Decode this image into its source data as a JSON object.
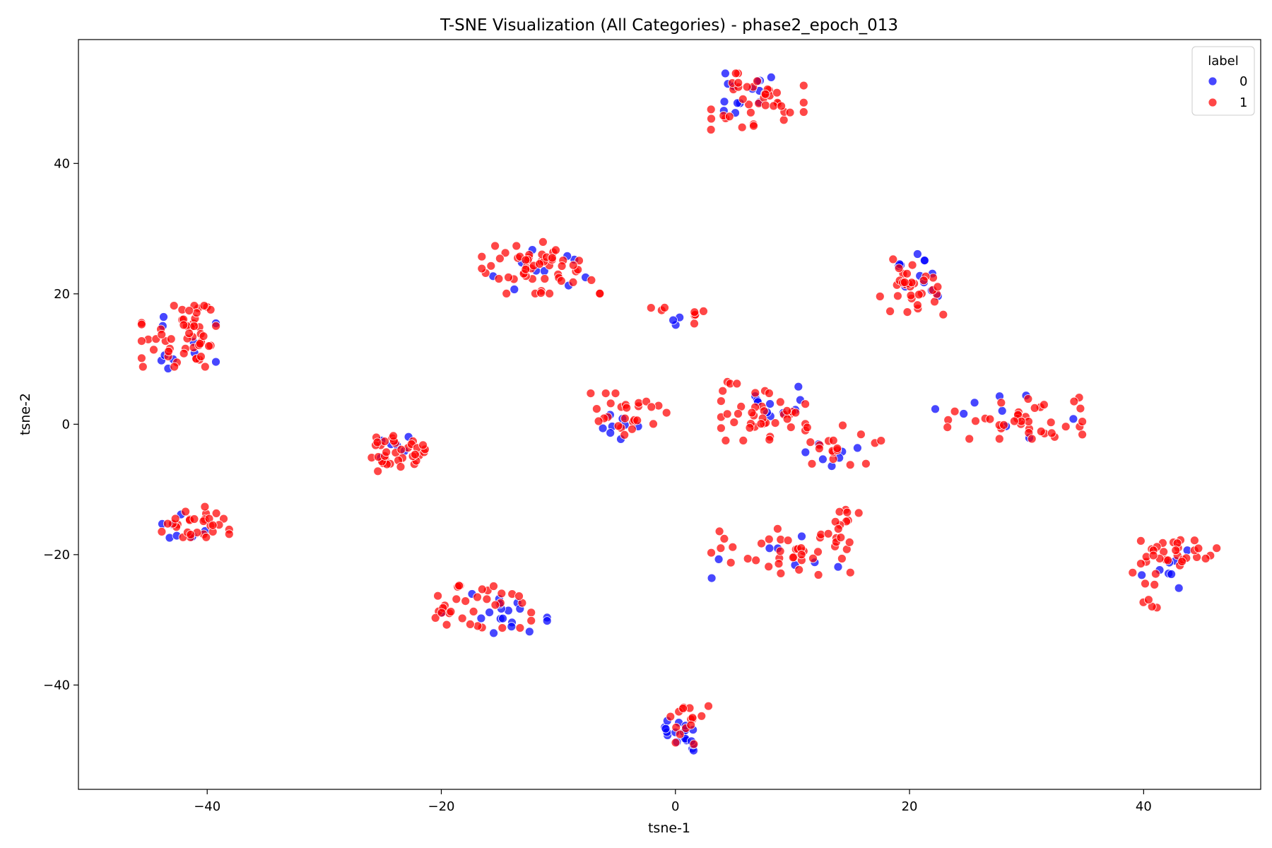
{
  "chart_data": {
    "type": "scatter",
    "title": "T-SNE Visualization (All Categories) - phase2_epoch_013",
    "xlabel": "tsne-1",
    "ylabel": "tsne-2",
    "xlim": [
      -51,
      50
    ],
    "ylim": [
      -56,
      59
    ],
    "xticks": [
      -40,
      -20,
      0,
      20,
      40
    ],
    "yticks": [
      -40,
      -20,
      0,
      20,
      40
    ],
    "grid": false,
    "legend": {
      "title": "label",
      "position": "top-right"
    },
    "series": [
      {
        "name": "0",
        "color": "#0000ff",
        "clusters": [
          {
            "cx": 6.0,
            "cy": 51.0,
            "sx": 1.6,
            "sy": 1.8,
            "n": 14,
            "seed": 11
          },
          {
            "cx": -12.0,
            "cy": 23.5,
            "sx": 2.4,
            "sy": 1.8,
            "n": 10,
            "seed": 12
          },
          {
            "cx": -42.5,
            "cy": 12.5,
            "sx": 1.8,
            "sy": 2.2,
            "n": 10,
            "seed": 13
          },
          {
            "cx": 21.0,
            "cy": 22.5,
            "sx": 1.2,
            "sy": 2.0,
            "n": 12,
            "seed": 14
          },
          {
            "cx": 1.0,
            "cy": 16.5,
            "sx": 0.7,
            "sy": 1.0,
            "n": 3,
            "seed": 15
          },
          {
            "cx": 8.5,
            "cy": 3.0,
            "sx": 1.2,
            "sy": 2.2,
            "n": 10,
            "seed": 16
          },
          {
            "cx": -4.8,
            "cy": 0.0,
            "sx": 0.9,
            "sy": 1.5,
            "n": 8,
            "seed": 17
          },
          {
            "cx": -23.0,
            "cy": -3.5,
            "sx": 1.2,
            "sy": 1.2,
            "n": 6,
            "seed": 18
          },
          {
            "cx": 28.5,
            "cy": 1.5,
            "sx": 3.5,
            "sy": 2.0,
            "n": 9,
            "seed": 19
          },
          {
            "cx": 13.5,
            "cy": -5.0,
            "sx": 1.6,
            "sy": 1.6,
            "n": 7,
            "seed": 20
          },
          {
            "cx": -41.5,
            "cy": -16.0,
            "sx": 1.4,
            "sy": 1.2,
            "n": 8,
            "seed": 21
          },
          {
            "cx": 8.5,
            "cy": -20.0,
            "sx": 3.0,
            "sy": 2.0,
            "n": 8,
            "seed": 22
          },
          {
            "cx": -16.0,
            "cy": -29.0,
            "sx": 2.8,
            "sy": 2.0,
            "n": 18,
            "seed": 23
          },
          {
            "cx": 42.0,
            "cy": -22.0,
            "sx": 1.2,
            "sy": 2.0,
            "n": 8,
            "seed": 24
          },
          {
            "cx": 0.3,
            "cy": -48.0,
            "sx": 0.9,
            "sy": 1.4,
            "n": 20,
            "seed": 25
          }
        ]
      },
      {
        "name": "1",
        "color": "#ff0000",
        "clusters": [
          {
            "cx": 7.0,
            "cy": 49.5,
            "sx": 2.2,
            "sy": 2.4,
            "n": 40,
            "seed": 31
          },
          {
            "cx": -11.5,
            "cy": 24.0,
            "sx": 2.8,
            "sy": 2.2,
            "n": 55,
            "seed": 32
          },
          {
            "cx": -42.0,
            "cy": 13.5,
            "sx": 2.0,
            "sy": 2.6,
            "n": 55,
            "seed": 33
          },
          {
            "cx": 20.0,
            "cy": 21.5,
            "sx": 1.6,
            "sy": 2.6,
            "n": 32,
            "seed": 34
          },
          {
            "cx": -1.0,
            "cy": 17.5,
            "sx": 0.6,
            "sy": 0.6,
            "n": 3,
            "seed": 35
          },
          {
            "cx": 1.5,
            "cy": 16.0,
            "sx": 0.5,
            "sy": 0.8,
            "n": 5,
            "seed": 36
          },
          {
            "cx": 7.5,
            "cy": 2.0,
            "sx": 2.0,
            "sy": 2.5,
            "n": 42,
            "seed": 37
          },
          {
            "cx": -4.0,
            "cy": 1.5,
            "sx": 1.8,
            "sy": 1.8,
            "n": 26,
            "seed": 38
          },
          {
            "cx": -24.0,
            "cy": -4.5,
            "sx": 1.7,
            "sy": 1.5,
            "n": 36,
            "seed": 39
          },
          {
            "cx": 29.0,
            "cy": 1.0,
            "sx": 3.2,
            "sy": 1.8,
            "n": 40,
            "seed": 40
          },
          {
            "cx": 14.5,
            "cy": -3.5,
            "sx": 1.8,
            "sy": 2.0,
            "n": 18,
            "seed": 41
          },
          {
            "cx": -41.0,
            "cy": -15.0,
            "sx": 1.6,
            "sy": 1.3,
            "n": 30,
            "seed": 42
          },
          {
            "cx": 9.0,
            "cy": -20.0,
            "sx": 3.3,
            "sy": 2.2,
            "n": 36,
            "seed": 43
          },
          {
            "cx": 14.5,
            "cy": -16.0,
            "sx": 0.8,
            "sy": 1.8,
            "n": 14,
            "seed": 44
          },
          {
            "cx": -17.0,
            "cy": -28.0,
            "sx": 2.6,
            "sy": 1.8,
            "n": 34,
            "seed": 45
          },
          {
            "cx": 43.0,
            "cy": -19.5,
            "sx": 1.8,
            "sy": 1.4,
            "n": 30,
            "seed": 46
          },
          {
            "cx": 40.5,
            "cy": -26.0,
            "sx": 0.8,
            "sy": 1.8,
            "n": 8,
            "seed": 47
          },
          {
            "cx": 1.2,
            "cy": -46.0,
            "sx": 0.9,
            "sy": 1.7,
            "n": 16,
            "seed": 48
          }
        ]
      }
    ]
  }
}
